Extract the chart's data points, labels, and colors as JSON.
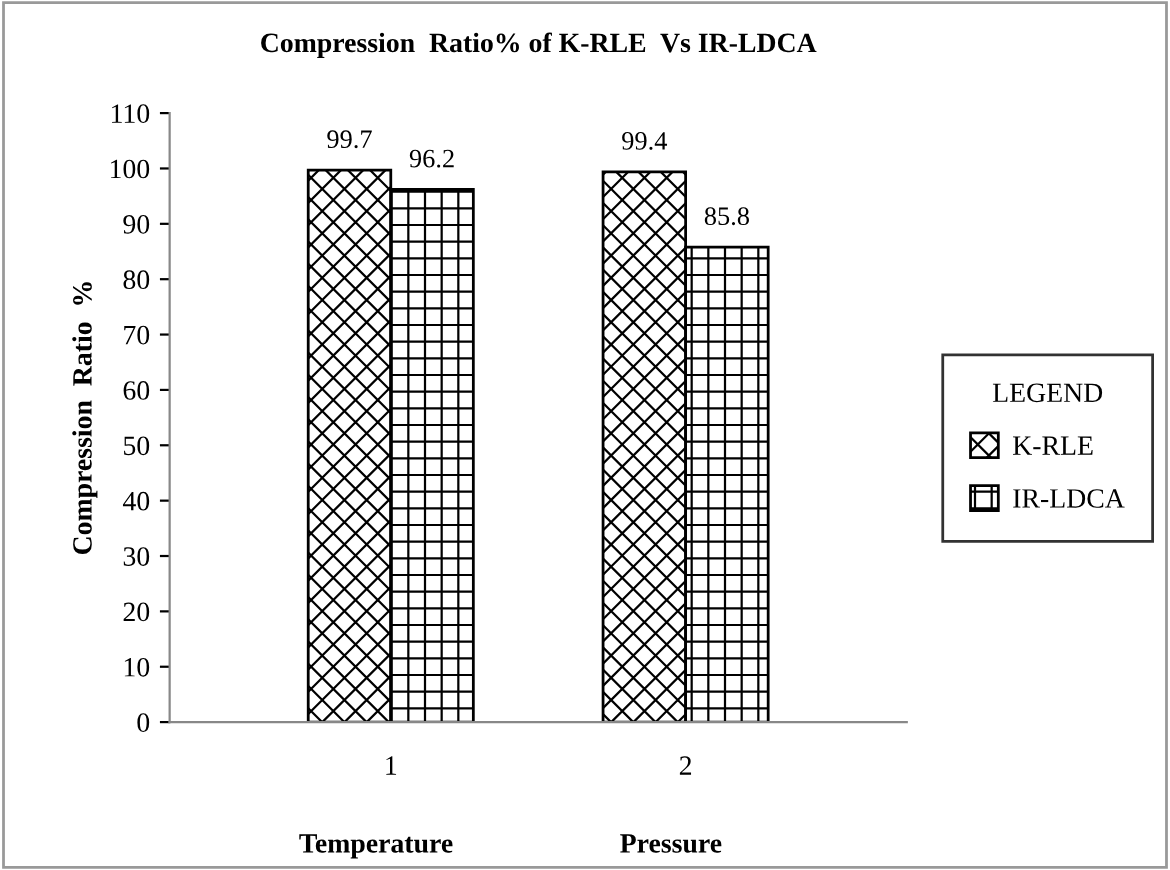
{
  "chart_data": {
    "type": "bar",
    "title": "Compression  Ratio% of K-RLE  Vs IR-LDCA",
    "ylabel": "Compression  Ratio  %",
    "legend_title": "LEGEND",
    "categories": [
      "1",
      "2"
    ],
    "annotations": [
      "Temperature",
      "Pressure"
    ],
    "series": [
      {
        "name": "K-RLE",
        "color": "#000000",
        "values": [
          99.7,
          99.4
        ]
      },
      {
        "name": "IR-LDCA",
        "color": "#000000",
        "values": [
          96.2,
          85.8
        ]
      }
    ],
    "ylim": [
      0,
      110
    ],
    "yticks": [
      0,
      10,
      20,
      30,
      40,
      50,
      60,
      70,
      80,
      90,
      100,
      110
    ],
    "data_labels": true,
    "grid": false,
    "legend": "right"
  }
}
